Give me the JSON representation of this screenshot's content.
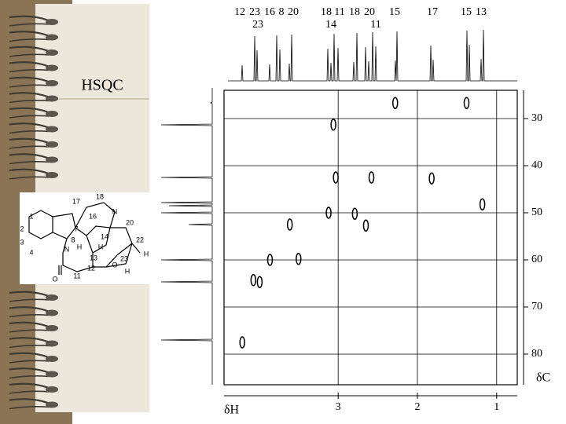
{
  "title": "HSQC",
  "chart_data": {
    "type": "scatter",
    "x_label": "δH",
    "y_label": "δC",
    "xlim": [
      4.44,
      0.74
    ],
    "ylim": [
      24,
      86.5
    ],
    "xticks": [
      3,
      2,
      1
    ],
    "yticks": [
      30,
      40,
      50,
      60,
      70,
      80
    ],
    "grid": true,
    "color": "#000000",
    "x": [
      2.28,
      1.38,
      3.06,
      3.03,
      2.58,
      1.82,
      1.18,
      3.12,
      2.79,
      2.65,
      3.61,
      3.86,
      3.5,
      4.07,
      3.99,
      4.21
    ],
    "y": [
      26.7,
      26.7,
      31.3,
      42.5,
      42.5,
      42.7,
      48.2,
      50,
      50.2,
      52.7,
      52.5,
      60,
      59.8,
      64.3,
      64.7,
      77.5
    ],
    "proton_labels": {
      "row1": [
        "12",
        "23",
        "16",
        "8",
        "20",
        "18",
        "11",
        "18",
        "20",
        "15",
        "17",
        "15",
        "13"
      ],
      "row2": [
        "23",
        "14",
        "11"
      ]
    }
  },
  "structure": {
    "labels": [
      "1",
      "2",
      "3",
      "4",
      "17",
      "18",
      "16",
      "N",
      "20",
      "7",
      "8",
      "H",
      "14",
      "H",
      "N",
      "13",
      "12",
      "22",
      "H",
      "23",
      "O",
      "H",
      "11",
      "O"
    ]
  }
}
